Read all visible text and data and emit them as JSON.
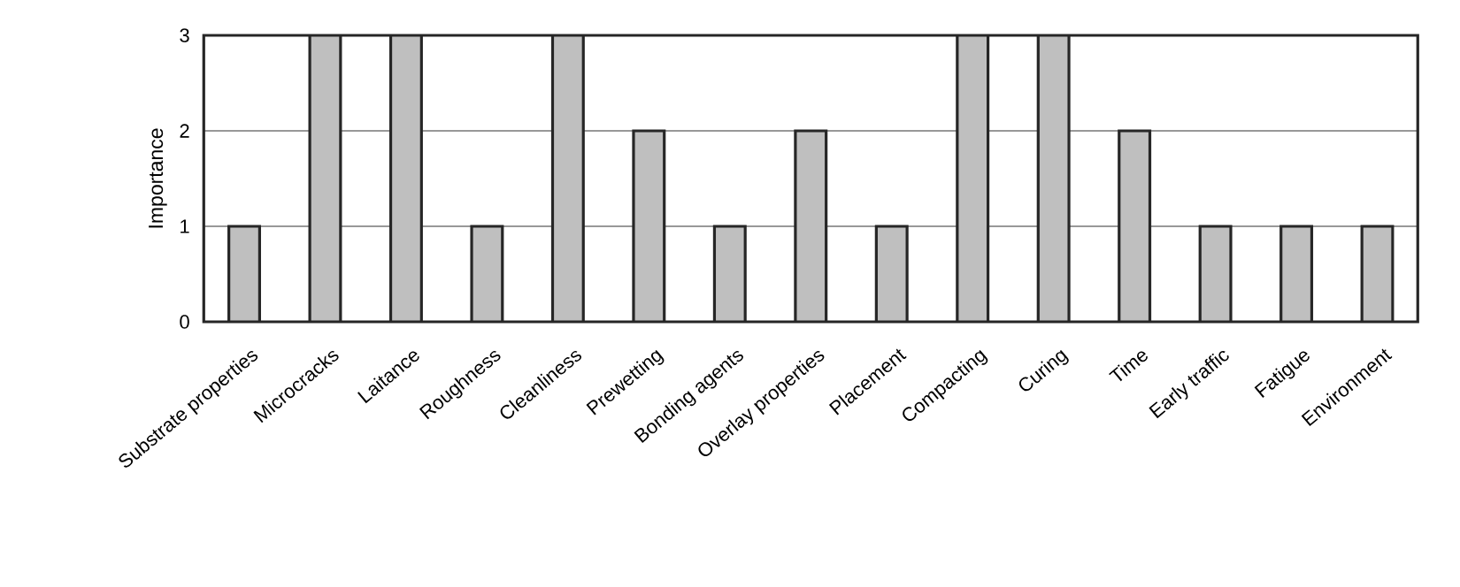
{
  "chart_data": {
    "type": "bar",
    "ylabel": "Importance",
    "categories": [
      "Substrate properties",
      "Microcracks",
      "Laitance",
      "Roughness",
      "Cleanliness",
      "Prewetting",
      "Bonding agents",
      "Overlay properties",
      "Placement",
      "Compacting",
      "Curing",
      "Time",
      "Early traffic",
      "Fatigue",
      "Environment"
    ],
    "values": [
      1,
      3,
      3,
      1,
      3,
      2,
      1,
      2,
      1,
      3,
      3,
      2,
      1,
      1,
      1
    ],
    "color": "#bfbfbf",
    "ylim": [
      0,
      3
    ],
    "yticks": [
      0,
      1,
      2,
      3
    ],
    "grid": "y"
  }
}
